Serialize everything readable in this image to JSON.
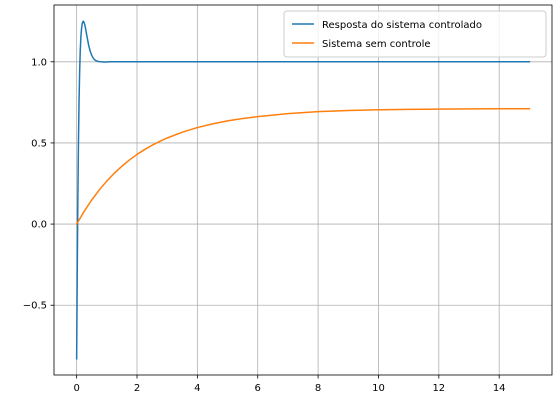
{
  "chart_data": {
    "type": "line",
    "title": "",
    "xlabel": "",
    "ylabel": "",
    "xlim": [
      -0.75,
      15.75
    ],
    "ylim": [
      -0.93,
      1.35
    ],
    "grid": true,
    "legend_position": "top-right",
    "x_ticks": [
      0,
      2,
      4,
      6,
      8,
      10,
      12,
      14
    ],
    "x_tick_labels": [
      "0",
      "2",
      "4",
      "6",
      "8",
      "10",
      "12",
      "14"
    ],
    "y_ticks": [
      -0.5,
      0.0,
      0.5,
      1.0
    ],
    "y_tick_labels": [
      "−0.5",
      "0.0",
      "0.5",
      "1.0"
    ],
    "series": [
      {
        "name": "Resposta do sistema controlado",
        "color": "#1f77b4",
        "x": [
          0,
          0.02,
          0.04,
          0.06,
          0.08,
          0.1,
          0.12,
          0.14,
          0.16,
          0.18,
          0.2,
          0.22,
          0.24,
          0.26,
          0.28,
          0.3,
          0.32,
          0.34,
          0.36,
          0.38,
          0.4,
          0.45,
          0.5,
          0.55,
          0.6,
          0.65,
          0.7,
          0.75,
          0.8,
          0.9,
          1.0,
          1.1,
          1.2,
          1.4,
          1.6,
          2.0,
          3.0,
          4.0,
          6.0,
          8.0,
          10.0,
          12.0,
          14.0,
          15.0
        ],
        "y": [
          -0.83,
          -0.3,
          0.15,
          0.5,
          0.76,
          0.94,
          1.07,
          1.15,
          1.2,
          1.23,
          1.245,
          1.25,
          1.245,
          1.235,
          1.22,
          1.2,
          1.18,
          1.16,
          1.14,
          1.12,
          1.1,
          1.065,
          1.04,
          1.023,
          1.012,
          1.006,
          1.003,
          1.001,
          1.0,
          0.999,
          0.999,
          1.0,
          1.0,
          1.0,
          1.0,
          1.0,
          1.0,
          1.0,
          1.0,
          1.0,
          1.0,
          1.0,
          1.0,
          1.0
        ]
      },
      {
        "name": "Sistema sem controle",
        "color": "#ff7f0e",
        "x": [
          0,
          0.25,
          0.5,
          0.75,
          1.0,
          1.25,
          1.5,
          1.75,
          2.0,
          2.25,
          2.5,
          2.75,
          3.0,
          3.5,
          4.0,
          4.5,
          5.0,
          5.5,
          6.0,
          7.0,
          8.0,
          9.0,
          10.0,
          11.0,
          12.0,
          13.0,
          14.0,
          15.0
        ],
        "y": [
          0.0,
          0.0787,
          0.1484,
          0.2103,
          0.2651,
          0.3138,
          0.357,
          0.3952,
          0.4291,
          0.4592,
          0.4859,
          0.5095,
          0.5305,
          0.5661,
          0.5947,
          0.6176,
          0.6359,
          0.6505,
          0.6622,
          0.6809,
          0.6926,
          0.6998,
          0.7043,
          0.707,
          0.7087,
          0.7097,
          0.7103,
          0.7106
        ]
      }
    ]
  }
}
